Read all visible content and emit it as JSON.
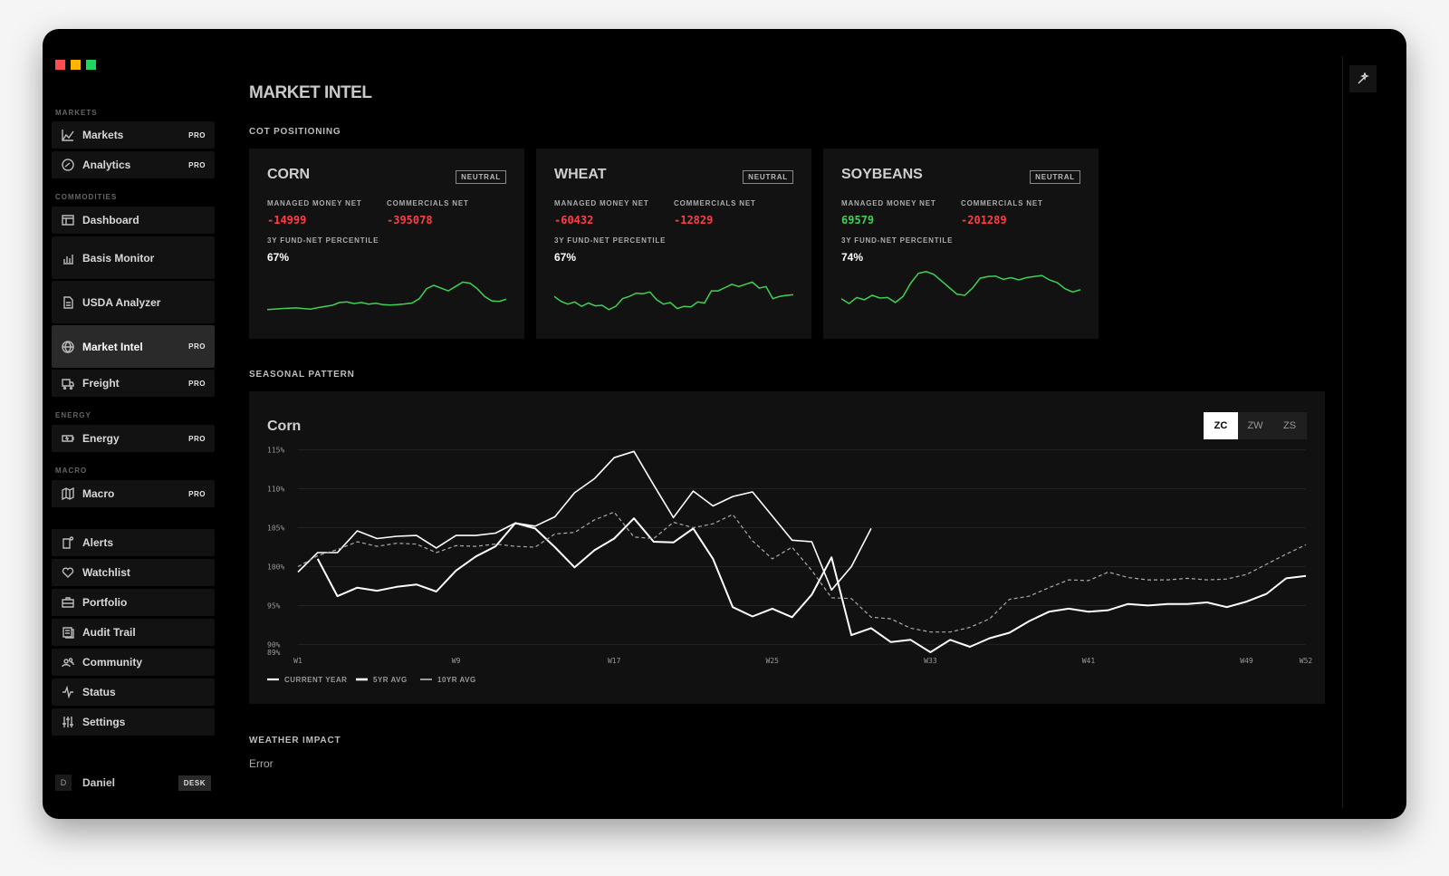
{
  "sidebar": {
    "sections": [
      "MARKETS",
      "COMMODITIES",
      "ENERGY",
      "MACRO"
    ],
    "items": [
      {
        "label": "Markets",
        "badge": "PRO",
        "icon": "line-chart-icon"
      },
      {
        "label": "Analytics",
        "badge": "PRO",
        "icon": "gauge-icon"
      },
      {
        "label": "Dashboard",
        "badge": "",
        "icon": "dashboard-icon"
      },
      {
        "label": "Basis Monitor",
        "badge": "",
        "icon": "bar-chart-icon"
      },
      {
        "label": "USDA Analyzer",
        "badge": "",
        "icon": "document-icon"
      },
      {
        "label": "Market Intel",
        "badge": "PRO",
        "icon": "globe-icon"
      },
      {
        "label": "Freight",
        "badge": "PRO",
        "icon": "truck-icon"
      },
      {
        "label": "Energy",
        "badge": "PRO",
        "icon": "battery-icon"
      },
      {
        "label": "Macro",
        "badge": "PRO",
        "icon": "map-icon"
      },
      {
        "label": "Alerts",
        "badge": "",
        "icon": "alert-icon"
      },
      {
        "label": "Watchlist",
        "badge": "",
        "icon": "heart-icon"
      },
      {
        "label": "Portfolio",
        "badge": "",
        "icon": "briefcase-icon"
      },
      {
        "label": "Audit Trail",
        "badge": "",
        "icon": "audit-icon"
      },
      {
        "label": "Community",
        "badge": "",
        "icon": "people-icon"
      },
      {
        "label": "Status",
        "badge": "",
        "icon": "activity-icon"
      },
      {
        "label": "Settings",
        "badge": "",
        "icon": "sliders-icon"
      }
    ],
    "user": {
      "initial": "D",
      "name": "Daniel",
      "badge": "DESK"
    }
  },
  "page": {
    "title": "MARKET INTEL",
    "cot_label": "COT POSITIONING",
    "seasonal_label": "SEASONAL PATTERN",
    "weather_label": "WEATHER IMPACT",
    "weather_value": "Error"
  },
  "cot_cards": [
    {
      "name": "CORN",
      "badge": "NEUTRAL",
      "mm_label": "MANAGED MONEY NET",
      "mm_value": "-14999",
      "mm_color": "#ff3d46",
      "cm_label": "COMMERCIALS NET",
      "cm_value": "-395078",
      "cm_color": "#ff3d46",
      "pct_label": "3Y FUND-NET PERCENTILE",
      "pct_value": "67%",
      "spark": [
        10,
        10.5,
        11,
        11.3,
        11.6,
        11,
        10.5,
        11.8,
        13,
        14,
        16.5,
        17,
        15.5,
        16.5,
        15,
        15.8,
        14.5,
        14.2,
        14.5,
        15.2,
        16,
        20,
        29,
        32,
        29.5,
        27,
        31,
        35,
        34,
        29,
        22,
        18,
        17.5,
        19.5
      ]
    },
    {
      "name": "WHEAT",
      "badge": "NEUTRAL",
      "mm_label": "MANAGED MONEY NET",
      "mm_value": "-60432",
      "mm_color": "#ff3d46",
      "cm_label": "COMMERCIALS NET",
      "cm_value": "-12829",
      "cm_color": "#ff3d46",
      "pct_label": "3Y FUND-NET PERCENTILE",
      "pct_value": "67%",
      "spark": [
        22,
        17.5,
        15,
        17,
        13,
        16,
        13.5,
        14,
        10,
        13,
        20,
        22,
        25,
        24.5,
        26,
        19,
        15,
        16.5,
        11,
        13,
        12.5,
        17,
        16,
        27,
        27,
        30,
        33,
        31,
        33,
        35,
        29.5,
        31,
        20,
        22,
        23,
        23.5
      ]
    },
    {
      "name": "SOYBEANS",
      "badge": "NEUTRAL",
      "mm_label": "MANAGED MONEY NET",
      "mm_value": "69579",
      "mm_color": "#3fd155",
      "cm_label": "COMMERCIALS NET",
      "cm_value": "-201289",
      "cm_color": "#3fd155",
      "pct_label": "3Y FUND-NET PERCENTILE",
      "pct_value": "74%",
      "spark": [
        20,
        15.5,
        21,
        19,
        23,
        20.5,
        21,
        16.5,
        22,
        34,
        43,
        44.5,
        42,
        36,
        30,
        24,
        23,
        29.5,
        38.5,
        40,
        40.5,
        37.5,
        39,
        37,
        39,
        40,
        41,
        37,
        34.5,
        29,
        26,
        28
      ]
    }
  ],
  "seasonal": {
    "title": "Corn",
    "toggles": [
      "ZC",
      "ZW",
      "ZS"
    ],
    "active_toggle": "ZC"
  },
  "chart_data": {
    "type": "line",
    "title": "Corn",
    "xlabel": "",
    "ylabel": "",
    "x_ticks": [
      "W1",
      "W9",
      "W17",
      "W25",
      "W33",
      "W41",
      "W49",
      "W52"
    ],
    "y_ticks": [
      "115%",
      "110%",
      "105%",
      "100%",
      "95%",
      "90%",
      "89%"
    ],
    "ylim": [
      89,
      116
    ],
    "xlim": [
      1,
      52
    ],
    "legend": "bottom-left",
    "series": [
      {
        "name": "CURRENT YEAR",
        "style": "solid-thick",
        "x": [
          1,
          2,
          3,
          4,
          5,
          6,
          7,
          8,
          9,
          10,
          11,
          12,
          13,
          14,
          15,
          16,
          17,
          18,
          19,
          20,
          21,
          22,
          23,
          24,
          25,
          26,
          27,
          28,
          29,
          30
        ],
        "values": [
          99.3,
          101.8,
          101.8,
          104.6,
          103.6,
          103.9,
          104,
          102.4,
          104,
          104,
          104.3,
          105.6,
          105.2,
          106.4,
          109.5,
          111.3,
          114,
          114.8,
          110.5,
          106.3,
          109.7,
          107.8,
          109,
          109.6,
          106.5,
          103.4,
          103.2,
          97,
          100,
          104.9
        ]
      },
      {
        "name": "5YR AVG",
        "style": "solid",
        "x": [
          2,
          3,
          4,
          5,
          6,
          7,
          8,
          9,
          10,
          11,
          12,
          13,
          14,
          15,
          16,
          17,
          18,
          19,
          20,
          21,
          22,
          23,
          24,
          25,
          26,
          27,
          28,
          29,
          30,
          31,
          32,
          33,
          34,
          35,
          36,
          37,
          38,
          39,
          40,
          41,
          42,
          43,
          44,
          45,
          46,
          47,
          48,
          49,
          50,
          51,
          52
        ],
        "values": [
          101,
          96.2,
          97.3,
          96.9,
          97.4,
          97.7,
          96.8,
          99.5,
          101.3,
          102.6,
          105.6,
          104.9,
          102.5,
          99.9,
          102.1,
          103.6,
          106.2,
          103.2,
          103.1,
          104.9,
          101,
          94.8,
          93.6,
          94.6,
          93.5,
          96.4,
          101.2,
          91.2,
          92.1,
          90.3,
          90.6,
          89,
          90.6,
          89.7,
          90.8,
          91.5,
          93,
          94.2,
          94.6,
          94.2,
          94.4,
          95.2,
          95,
          95.2,
          95.2,
          95.4,
          94.8,
          95.5,
          96.5,
          98.5,
          98.8
        ]
      },
      {
        "name": "10YR AVG",
        "style": "dashed",
        "x": [
          1,
          2,
          3,
          4,
          5,
          6,
          7,
          8,
          9,
          10,
          11,
          12,
          13,
          14,
          15,
          16,
          17,
          18,
          19,
          20,
          21,
          22,
          23,
          24,
          25,
          26,
          27,
          28,
          29,
          30,
          31,
          32,
          33,
          34,
          35,
          36,
          37,
          38,
          39,
          40,
          41,
          42,
          43,
          44,
          45,
          46,
          47,
          48,
          49,
          50,
          51,
          52
        ],
        "values": [
          100,
          101.4,
          102.2,
          103.2,
          102.6,
          103,
          102.9,
          101.8,
          102.7,
          102.6,
          102.9,
          102.6,
          102.5,
          104.2,
          104.4,
          106,
          107,
          103.8,
          103.6,
          105.7,
          105,
          105.5,
          106.7,
          103.3,
          101,
          102.5,
          99.5,
          96,
          95.9,
          93.5,
          93.3,
          92.1,
          91.6,
          91.6,
          92.2,
          93.3,
          95.8,
          96.2,
          97.3,
          98.3,
          98.2,
          99.3,
          98.6,
          98.3,
          98.3,
          98.5,
          98.3,
          98.4,
          99,
          100.3,
          101.6,
          102.8
        ]
      }
    ]
  },
  "colors": {
    "accent": "#ffffff",
    "red": "#ff3d46",
    "green": "#3fd155",
    "card": "#121212",
    "bg": "#000000"
  }
}
